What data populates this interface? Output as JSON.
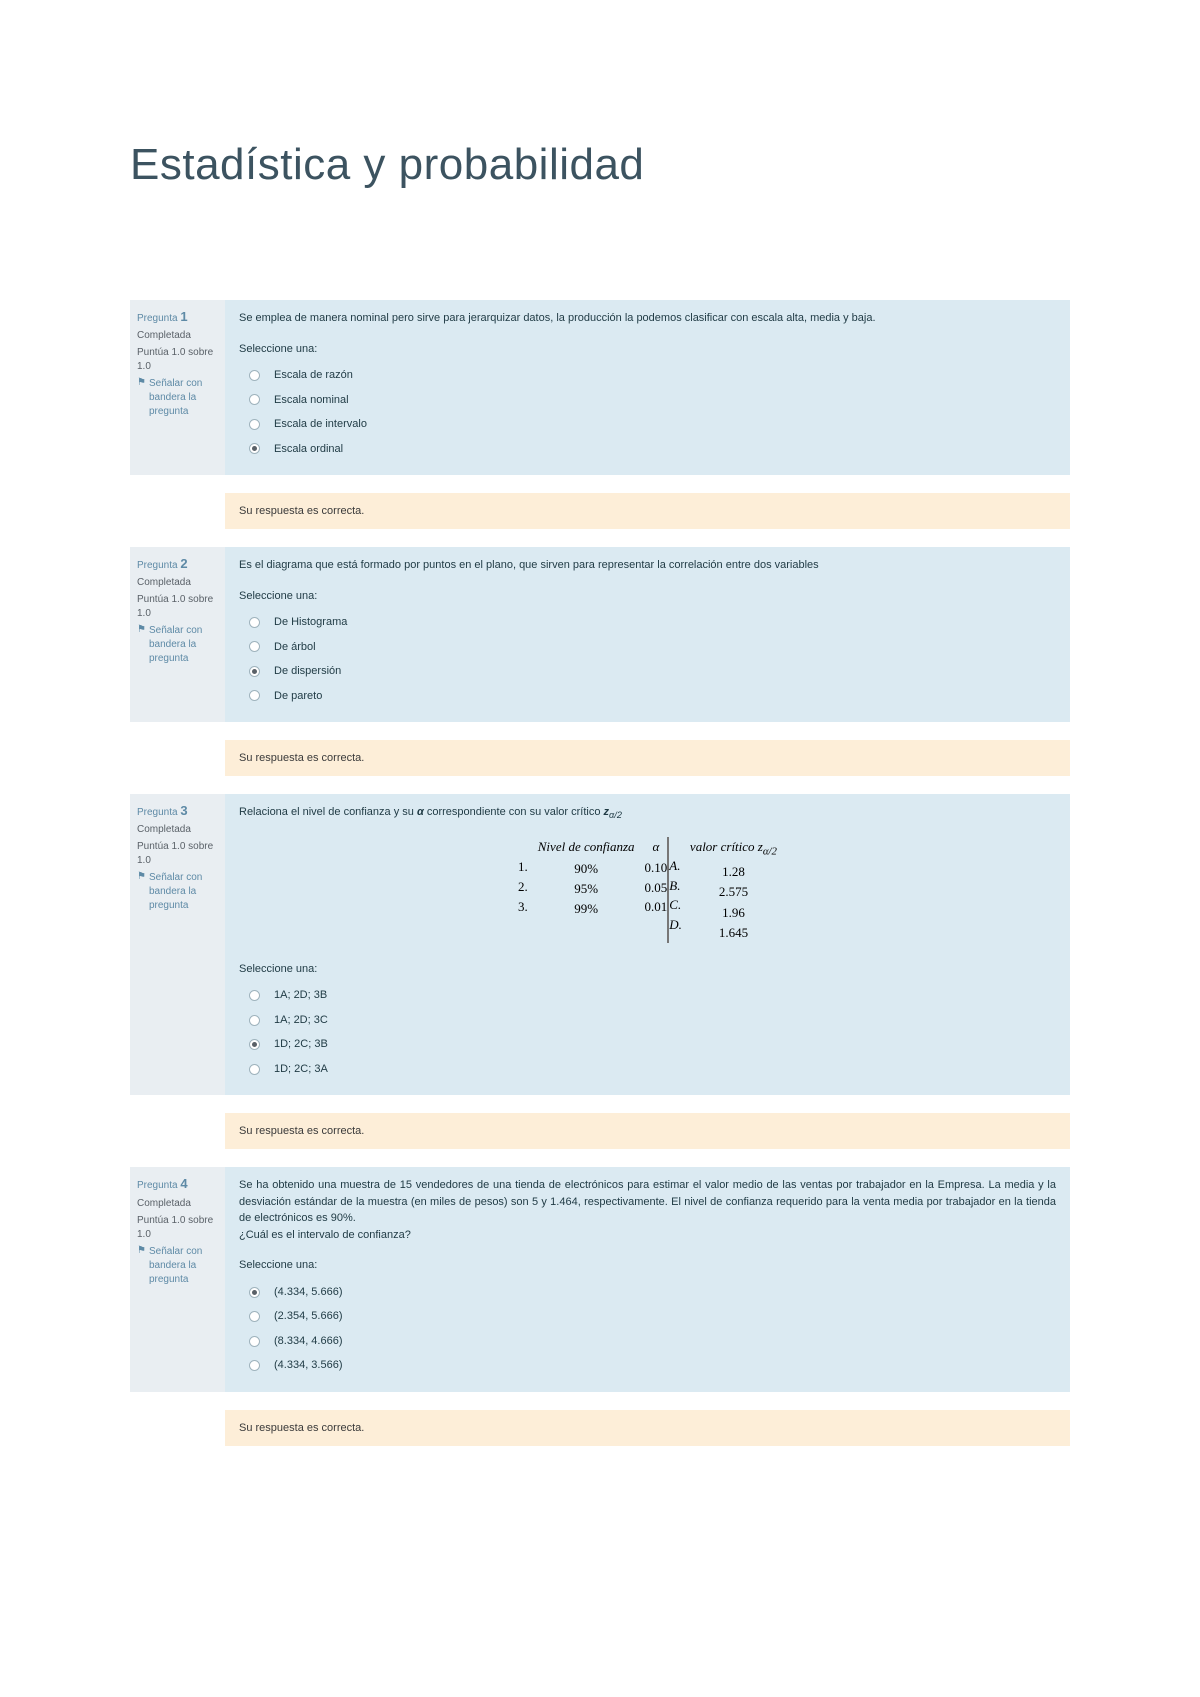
{
  "page": {
    "title": "Estadística y probabilidad"
  },
  "common": {
    "select_one": "Seleccione una:",
    "flag_text": "Señalar con bandera la pregunta",
    "feedback_correct": "Su respuesta es correcta."
  },
  "questions": [
    {
      "label": "Pregunta",
      "number": "1",
      "status": "Completada",
      "score": "Puntúa 1.0 sobre 1.0",
      "prompt": "Se emplea de manera nominal pero sirve para jerarquizar datos, la producción la podemos clasificar con escala alta, media y baja.",
      "options": [
        "Escala de razón",
        "Escala nominal",
        "Escala de intervalo",
        "Escala ordinal"
      ],
      "selected": 3
    },
    {
      "label": "Pregunta",
      "number": "2",
      "status": "Completada",
      "score": "Puntúa 1.0 sobre 1.0",
      "prompt": "Es el diagrama que está formado por puntos en el plano, que sirven para representar la correlación entre dos variables",
      "options": [
        "De Histograma",
        "De árbol",
        "De dispersión",
        "De pareto"
      ],
      "selected": 2
    },
    {
      "label": "Pregunta",
      "number": "3",
      "status": "Completada",
      "score": "Puntúa 1.0 sobre 1.0",
      "prompt_html": "Relaciona el nivel de confianza y su <b><i>α</i></b> correspondiente con su valor crítico <b><i>z</i></b><sub><i>α/2</i></sub>",
      "matching": {
        "left_header": "Nivel de confianza",
        "alpha_header": "α",
        "right_header": "valor crítico z",
        "right_header_sub": "α/2",
        "rows_left": [
          {
            "n": "1.",
            "conf": "90%",
            "alpha": "0.10"
          },
          {
            "n": "2.",
            "conf": "95%",
            "alpha": "0.05"
          },
          {
            "n": "3.",
            "conf": "99%",
            "alpha": "0.01"
          }
        ],
        "rows_right": [
          {
            "l": "A.",
            "v": "1.28"
          },
          {
            "l": "B.",
            "v": "2.575"
          },
          {
            "l": "C.",
            "v": "1.96"
          },
          {
            "l": "D.",
            "v": "1.645"
          }
        ]
      },
      "options": [
        "1A; 2D; 3B",
        "1A; 2D; 3C",
        "1D; 2C; 3B",
        "1D; 2C; 3A"
      ],
      "selected": 2
    },
    {
      "label": "Pregunta",
      "number": "4",
      "status": "Completada",
      "score": "Puntúa 1.0 sobre 1.0",
      "prompt_lines": [
        "Se ha obtenido una muestra de 15 vendedores de una tienda de electrónicos para estimar el valor medio de las ventas por trabajador en la Empresa. La media y la desviación estándar de la muestra (en miles de pesos) son 5 y 1.464, respectivamente. El nivel de confianza requerido para la venta media por trabajador en la tienda de electrónicos es 90%.",
        "¿Cuál es el intervalo de confianza?"
      ],
      "options": [
        "(4.334, 5.666)",
        "(2.354, 5.666)",
        "(8.334, 4.666)",
        "(4.334, 3.566)"
      ],
      "selected": 0
    }
  ]
}
